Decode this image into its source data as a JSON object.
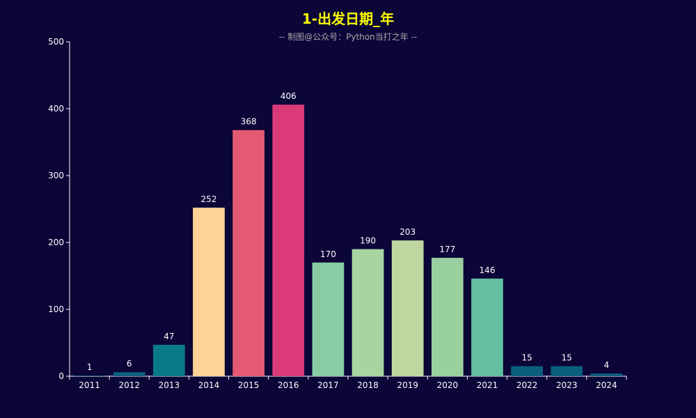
{
  "chart_data": {
    "type": "bar",
    "title": "1-出发日期_年",
    "subtitle": "-- 制图@公众号：Python当打之年 --",
    "categories": [
      "2011",
      "2012",
      "2013",
      "2014",
      "2015",
      "2016",
      "2017",
      "2018",
      "2019",
      "2020",
      "2021",
      "2022",
      "2023",
      "2024"
    ],
    "values": [
      1,
      6,
      47,
      252,
      368,
      406,
      170,
      190,
      203,
      177,
      146,
      15,
      15,
      4
    ],
    "colors": [
      "#0d5f7e",
      "#0d5f7e",
      "#0a7a8a",
      "#fdd397",
      "#e35a72",
      "#db3a7a",
      "#88cca4",
      "#a7d4a0",
      "#c0d6a0",
      "#9ad0a0",
      "#64bea0",
      "#0d5f7e",
      "#0d5f7e",
      "#0d5f7e"
    ],
    "ylim": [
      0,
      500
    ],
    "yticks": [
      0,
      100,
      200,
      300,
      400,
      500
    ],
    "grid": false,
    "legend": "none",
    "background": "#0b0538",
    "title_color": "#ffff00"
  }
}
